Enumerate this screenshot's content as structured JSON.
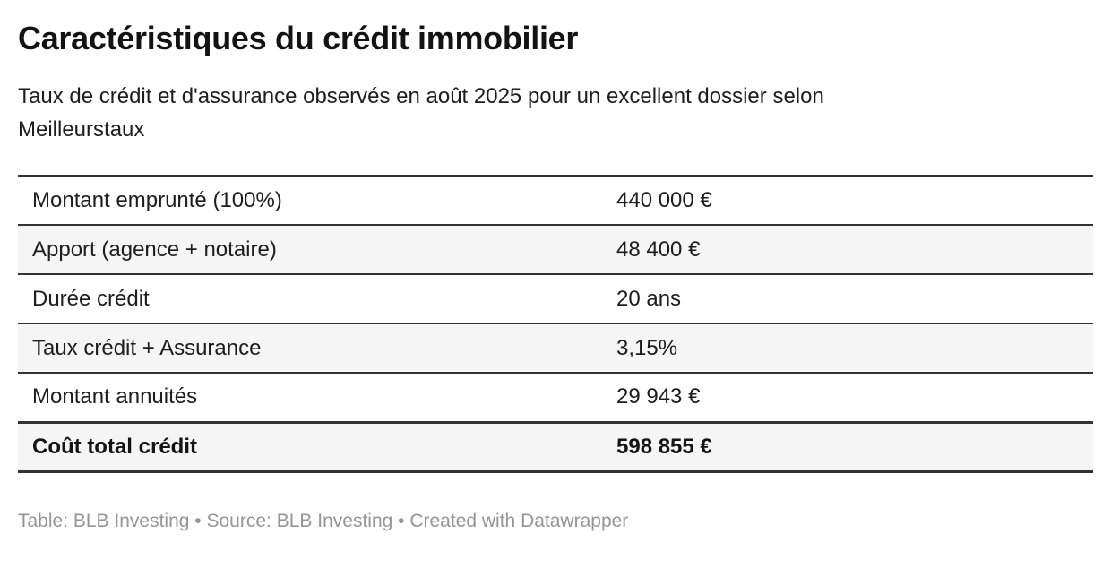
{
  "header": {
    "title": "Caractéristiques du crédit immobilier",
    "subtitle": "Taux de crédit et d'assurance observés en août 2025 pour un excellent dossier selon Meilleurstaux"
  },
  "table": {
    "rows": [
      {
        "label": "Montant emprunté (100%)",
        "value": "440 000 €"
      },
      {
        "label": "Apport (agence + notaire)",
        "value": "48 400 €"
      },
      {
        "label": "Durée crédit",
        "value": "20 ans"
      },
      {
        "label": "Taux crédit + Assurance",
        "value": "3,15%"
      },
      {
        "label": "Montant annuités",
        "value": "29 943 €"
      },
      {
        "label": "Coût total crédit",
        "value": "598 855 €"
      }
    ]
  },
  "footer": {
    "table_prefix": "Table: ",
    "table_credit": "BLB Investing",
    "bullet1": " • ",
    "source_prefix": "Source: ",
    "source_credit": "BLB Investing",
    "bullet2": " • ",
    "created_prefix": "Created with ",
    "created_credit": "Datawrapper"
  },
  "colors": {
    "background": "#ffffff",
    "text": "#1d1d1d",
    "title_text": "#131313",
    "row_stripe": "#f5f5f5",
    "table_border": "#333333",
    "footer_text": "#959595"
  },
  "chart_data": {
    "type": "table",
    "title": "Caractéristiques du crédit immobilier",
    "subtitle": "Taux de crédit et d'assurance observés en août 2025 pour un excellent dossier selon Meilleurstaux",
    "rows": [
      [
        "Montant emprunté (100%)",
        "440 000 €"
      ],
      [
        "Apport (agence + notaire)",
        "48 400 €"
      ],
      [
        "Durée crédit",
        "20 ans"
      ],
      [
        "Taux crédit + Assurance",
        "3,15%"
      ],
      [
        "Montant annuités",
        "29 943 €"
      ],
      [
        "Coût total crédit",
        "598 855 €"
      ]
    ],
    "total_row_index": 5,
    "attribution": "Table: BLB Investing • Source: BLB Investing • Created with Datawrapper",
    "layout_hints": {
      "striped_rows": [
        1,
        3,
        5
      ],
      "header_row": false,
      "value_alignment": "left"
    }
  }
}
